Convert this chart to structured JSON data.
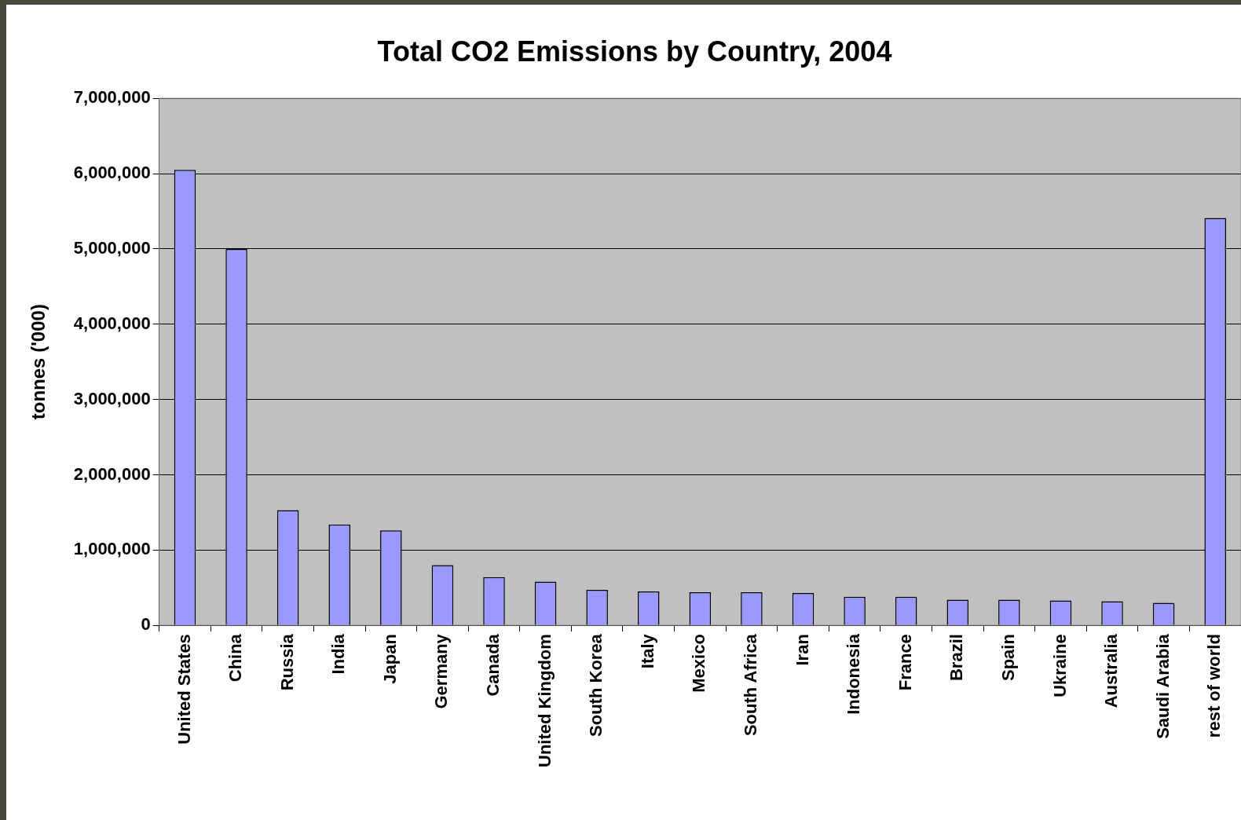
{
  "chart_data": {
    "type": "bar",
    "title": "Total CO2 Emissions by Country, 2004",
    "ylabel": "tonnes ('000)",
    "categories": [
      "United States",
      "China",
      "Russia",
      "India",
      "Japan",
      "Germany",
      "Canada",
      "United Kingdom",
      "South Korea",
      "Italy",
      "Mexico",
      "South Africa",
      "Iran",
      "Indonesia",
      "France",
      "Brazil",
      "Spain",
      "Ukraine",
      "Australia",
      "Saudi Arabia",
      "rest of world"
    ],
    "values": [
      6050000,
      5000000,
      1530000,
      1340000,
      1260000,
      800000,
      640000,
      580000,
      470000,
      450000,
      440000,
      440000,
      430000,
      380000,
      380000,
      340000,
      340000,
      330000,
      320000,
      300000,
      5410000
    ],
    "color": "#9999ff",
    "ylim": [
      0,
      7000000
    ],
    "yticks": [
      0,
      {
        "value": 1000000,
        "label": "1,000,000"
      },
      {
        "value": 2000000,
        "label": "2,000,000"
      },
      {
        "value": 3000000,
        "label": "3,000,000"
      },
      {
        "value": 4000000,
        "label": "4,000,000"
      },
      {
        "value": 5000000,
        "label": "5,000,000"
      },
      {
        "value": 6000000,
        "label": "6,000,000"
      },
      {
        "value": 7000000,
        "label": "7,000,000"
      }
    ],
    "grid": "y",
    "legend": false
  }
}
